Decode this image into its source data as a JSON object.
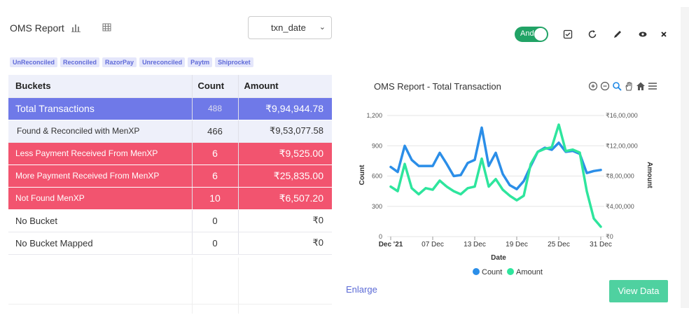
{
  "header": {
    "title": "OMS Report",
    "chart_icon": "bar-chart-icon",
    "table_icon": "grid-icon",
    "select_value": "txn_date"
  },
  "toolbar": {
    "toggle_label": "And",
    "icons": [
      "checkbox-icon",
      "refresh-icon",
      "pencil-icon",
      "eye-icon",
      "close-icon"
    ]
  },
  "chips": [
    "UnReconciled",
    "Reconciled",
    "RazorPay",
    "Unreconciled",
    "Paytm",
    "Shiprocket"
  ],
  "table": {
    "headers": [
      "Buckets",
      "Count",
      "Amount"
    ],
    "rows": [
      {
        "bucket": "Total  Transactions",
        "count": "488",
        "amount": "₹9,94,944.78"
      },
      {
        "bucket": "Found & Reconciled with MenXP",
        "count": "466",
        "amount": "₹9,53,077.58"
      },
      {
        "bucket": "Less Payment Received From MenXP",
        "count": "6",
        "amount": "₹9,525.00"
      },
      {
        "bucket": "More Payment Received From MenXP",
        "count": "6",
        "amount": "₹25,835.00"
      },
      {
        "bucket": "Not Found MenXP",
        "count": "10",
        "amount": "₹6,507.20"
      },
      {
        "bucket": "No Bucket",
        "count": "0",
        "amount": "₹0"
      },
      {
        "bucket": "No Bucket Mapped",
        "count": "0",
        "amount": "₹0"
      }
    ]
  },
  "chart": {
    "title": "OMS Report - Total Transaction",
    "tool_icons": [
      "zoom-in-icon",
      "zoom-out-icon",
      "search-icon",
      "pan-hand-icon",
      "home-icon",
      "menu-icon"
    ]
  },
  "chart_data": {
    "type": "line",
    "x": [
      "2021-12-01",
      "2021-12-02",
      "2021-12-03",
      "2021-12-04",
      "2021-12-05",
      "2021-12-06",
      "2021-12-07",
      "2021-12-08",
      "2021-12-09",
      "2021-12-10",
      "2021-12-11",
      "2021-12-12",
      "2021-12-13",
      "2021-12-14",
      "2021-12-15",
      "2021-12-16",
      "2021-12-17",
      "2021-12-18",
      "2021-12-19",
      "2021-12-20",
      "2021-12-21",
      "2021-12-22",
      "2021-12-23",
      "2021-12-24",
      "2021-12-25",
      "2021-12-26",
      "2021-12-27",
      "2021-12-28",
      "2021-12-29",
      "2021-12-30",
      "2021-12-31"
    ],
    "xticks": [
      "Dec '21",
      "07 Dec",
      "13 Dec",
      "19 Dec",
      "25 Dec",
      "31 Dec"
    ],
    "xlabel": "Date",
    "ylabel_left": "Count",
    "ylabel_right": "Amount",
    "yticks_left": [
      "0",
      "300",
      "600",
      "900",
      "1,200"
    ],
    "yticks_right": [
      "₹0",
      "₹4,00,000",
      "₹8,00,000",
      "₹12,00,000",
      "₹16,00,000"
    ],
    "ylim_left": [
      0,
      1200
    ],
    "ylim_right": [
      0,
      1600000
    ],
    "series": [
      {
        "name": "Count",
        "color": "#2b8ee8",
        "axis": "left",
        "values": [
          690,
          640,
          900,
          760,
          700,
          700,
          700,
          830,
          720,
          600,
          610,
          730,
          760,
          1080,
          700,
          830,
          620,
          510,
          470,
          550,
          700,
          840,
          880,
          860,
          930,
          840,
          850,
          820,
          630,
          650,
          660
        ]
      },
      {
        "name": "Amount",
        "color": "#2ee59d",
        "axis": "right",
        "values": [
          660000,
          600000,
          960000,
          640000,
          560000,
          640000,
          620000,
          740000,
          660000,
          600000,
          560000,
          640000,
          660000,
          1030000,
          660000,
          760000,
          620000,
          540000,
          480000,
          540000,
          960000,
          1120000,
          1160000,
          1180000,
          1480000,
          1130000,
          1150000,
          1110000,
          600000,
          240000,
          130000
        ]
      }
    ],
    "legend": "bottom",
    "grid": true
  },
  "footer": {
    "enlarge": "Enlarge",
    "view_button": "View Data"
  },
  "colors": {
    "accent": "#6f79e8",
    "danger": "#f2546f",
    "success": "#21a366",
    "view_button": "#4fd1a0"
  }
}
